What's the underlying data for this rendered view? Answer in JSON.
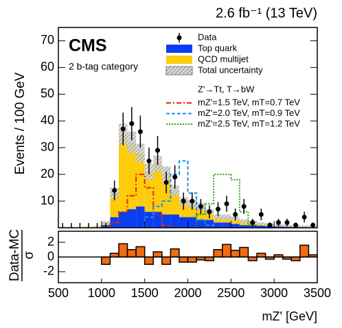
{
  "chart_data": [
    {
      "type": "histogram",
      "title": "2.6 fb⁻¹ (13 TeV)",
      "experiment": "CMS",
      "annotation": "2 b-tag category",
      "ylabel": "Events / 100 GeV",
      "bins": [
        500,
        600,
        700,
        800,
        900,
        1000,
        1100,
        1200,
        1300,
        1400,
        1500,
        1600,
        1700,
        1800,
        1900,
        2000,
        2100,
        2200,
        2300,
        2400,
        2500,
        2600,
        2700,
        2800,
        2900,
        3000,
        3100,
        3200,
        3300,
        3400,
        3500
      ],
      "xlim": [
        500,
        3500
      ],
      "ylim": [
        0,
        75
      ],
      "yticks": [
        10,
        20,
        30,
        40,
        50,
        60,
        70
      ],
      "series": [
        {
          "name": "Top quark",
          "color": "#0a3ef0",
          "values": [
            0.1,
            0.1,
            0.1,
            0.1,
            0.2,
            1,
            4,
            6,
            7,
            8,
            6,
            6,
            5,
            5,
            4,
            4,
            3,
            3,
            2,
            2,
            1.5,
            1,
            1,
            0.8,
            0.6,
            0.5,
            0.4,
            0.3,
            0.3,
            0.2
          ]
        },
        {
          "name": "QCD multijet",
          "color": "#fdcc0a",
          "values": [
            0.2,
            0.2,
            0.2,
            0.3,
            0.3,
            1,
            9,
            29,
            25,
            20,
            15,
            18,
            15,
            9,
            6,
            5,
            5,
            3,
            2,
            2,
            2,
            1.5,
            1,
            0.7,
            0.6,
            0.5,
            0.4,
            0.4,
            0.3,
            0.3
          ]
        }
      ],
      "uncertainty": {
        "name": "Total uncertainty",
        "color": "#999999",
        "values": [
          0.1,
          0.1,
          0.1,
          0.1,
          0.2,
          0.5,
          2,
          4,
          4,
          3.5,
          3,
          3,
          3,
          2,
          1.5,
          1.5,
          1.5,
          1,
          1,
          1,
          0.8,
          0.7,
          0.6,
          0.5,
          0.5,
          0.4,
          0.4,
          0.3,
          0.3,
          0.3
        ]
      },
      "data": {
        "name": "Data",
        "color": "#000000",
        "values": [
          0,
          0,
          0,
          0,
          0,
          0,
          14,
          37,
          39,
          36,
          25,
          29,
          17,
          19,
          10,
          10,
          8,
          6,
          7,
          9,
          5,
          8,
          2,
          5,
          1,
          2,
          2,
          1,
          4,
          1
        ],
        "errors": [
          1.8,
          1.8,
          1.8,
          1.8,
          1.8,
          1.8,
          3.7,
          6.1,
          6.2,
          6,
          5,
          5.4,
          4.1,
          4.4,
          3.2,
          3.2,
          2.8,
          2.4,
          2.6,
          3,
          2.2,
          2.8,
          1.4,
          2.2,
          1,
          1.4,
          1.4,
          1,
          2,
          1
        ]
      },
      "signal_header": "Z'→Tt, T→bW",
      "signals": [
        {
          "name": "mZ'=1.5 TeV, mT=0.7 TeV",
          "color": "#ee2200",
          "dash": "dashdot",
          "values": [
            null,
            null,
            null,
            null,
            null,
            null,
            2,
            6,
            12,
            20,
            15,
            5,
            1,
            null,
            null,
            null,
            null,
            null,
            null,
            null,
            null,
            null,
            null,
            null,
            null,
            null,
            null,
            null,
            null,
            null
          ]
        },
        {
          "name": "mZ'=2.0 TeV, mT=0.9 TeV",
          "color": "#1a90e8",
          "dash": "dashed",
          "values": [
            null,
            null,
            null,
            null,
            null,
            null,
            null,
            null,
            null,
            null,
            4,
            8,
            10,
            20,
            25,
            13,
            3,
            1,
            null,
            null,
            null,
            null,
            null,
            null,
            null,
            null,
            null,
            null,
            null,
            null
          ]
        },
        {
          "name": "mZ'=2.5 TeV, mT=1.2 TeV",
          "color": "#2e9e10",
          "dash": "dotted",
          "values": [
            null,
            null,
            null,
            null,
            null,
            null,
            null,
            null,
            null,
            null,
            null,
            null,
            null,
            null,
            null,
            null,
            5,
            9,
            20,
            20,
            18,
            6,
            1,
            null,
            null,
            null,
            null,
            null,
            null,
            null
          ]
        }
      ]
    },
    {
      "type": "histogram",
      "ylabel_numerator": "Data-MC",
      "ylabel_denominator": "σ",
      "xlabel": "mZ' [GeV]",
      "bins": [
        500,
        600,
        700,
        800,
        900,
        1000,
        1100,
        1200,
        1300,
        1400,
        1500,
        1600,
        1700,
        1800,
        1900,
        2000,
        2100,
        2200,
        2300,
        2400,
        2500,
        2600,
        2700,
        2800,
        2900,
        3000,
        3100,
        3200,
        3300,
        3400,
        3500
      ],
      "xlim": [
        500,
        3500
      ],
      "xticks": [
        500,
        1000,
        1500,
        2000,
        2500,
        3000,
        3500
      ],
      "ylim": [
        -3.5,
        3.5
      ],
      "yticks": [
        -2,
        0,
        2
      ],
      "color": "#f26b10",
      "values": [
        0,
        0,
        0,
        0,
        0,
        -1,
        0.5,
        1.8,
        1,
        1.4,
        -1,
        0.7,
        -1,
        1.1,
        -0.7,
        -0.7,
        -0.4,
        -0.5,
        1,
        1.7,
        0.9,
        1.3,
        -0.5,
        0.5,
        -0.3,
        0.3,
        -0.3,
        -0.5,
        1.6,
        0.3
      ]
    }
  ]
}
